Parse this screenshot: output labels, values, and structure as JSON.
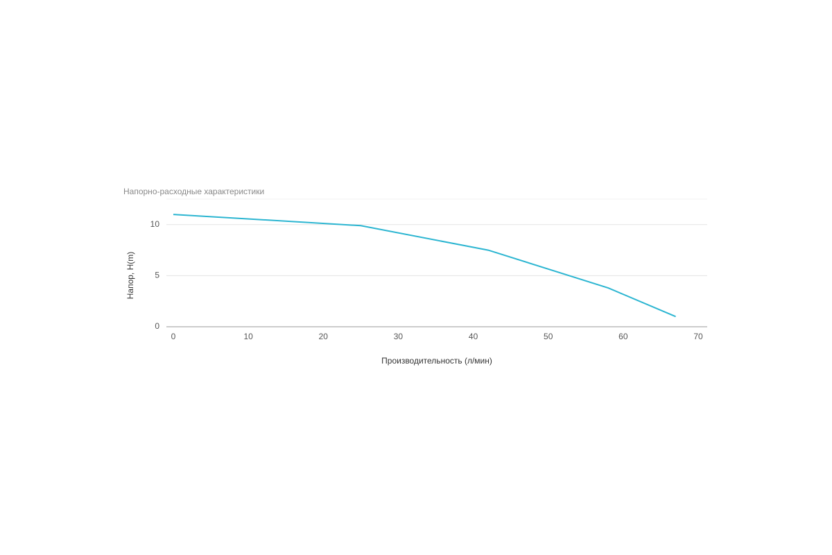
{
  "chart_data": {
    "type": "line",
    "title": "Напорно-расходные характеристики",
    "x_label": "Производительность (л/мин)",
    "y_label": "Напор, H(m)",
    "x": [
      0,
      25,
      42,
      58,
      67
    ],
    "series": [
      {
        "name": "Напор",
        "color": "#2bb5d1",
        "values": [
          11,
          9.9,
          7.5,
          3.8,
          1
        ]
      }
    ],
    "xlim": [
      0,
      70
    ],
    "xticks": [
      0,
      10,
      20,
      30,
      40,
      50,
      60,
      70
    ],
    "ylim": [
      0,
      12.5
    ],
    "yticks": [
      0,
      5,
      10
    ],
    "grid": true
  }
}
